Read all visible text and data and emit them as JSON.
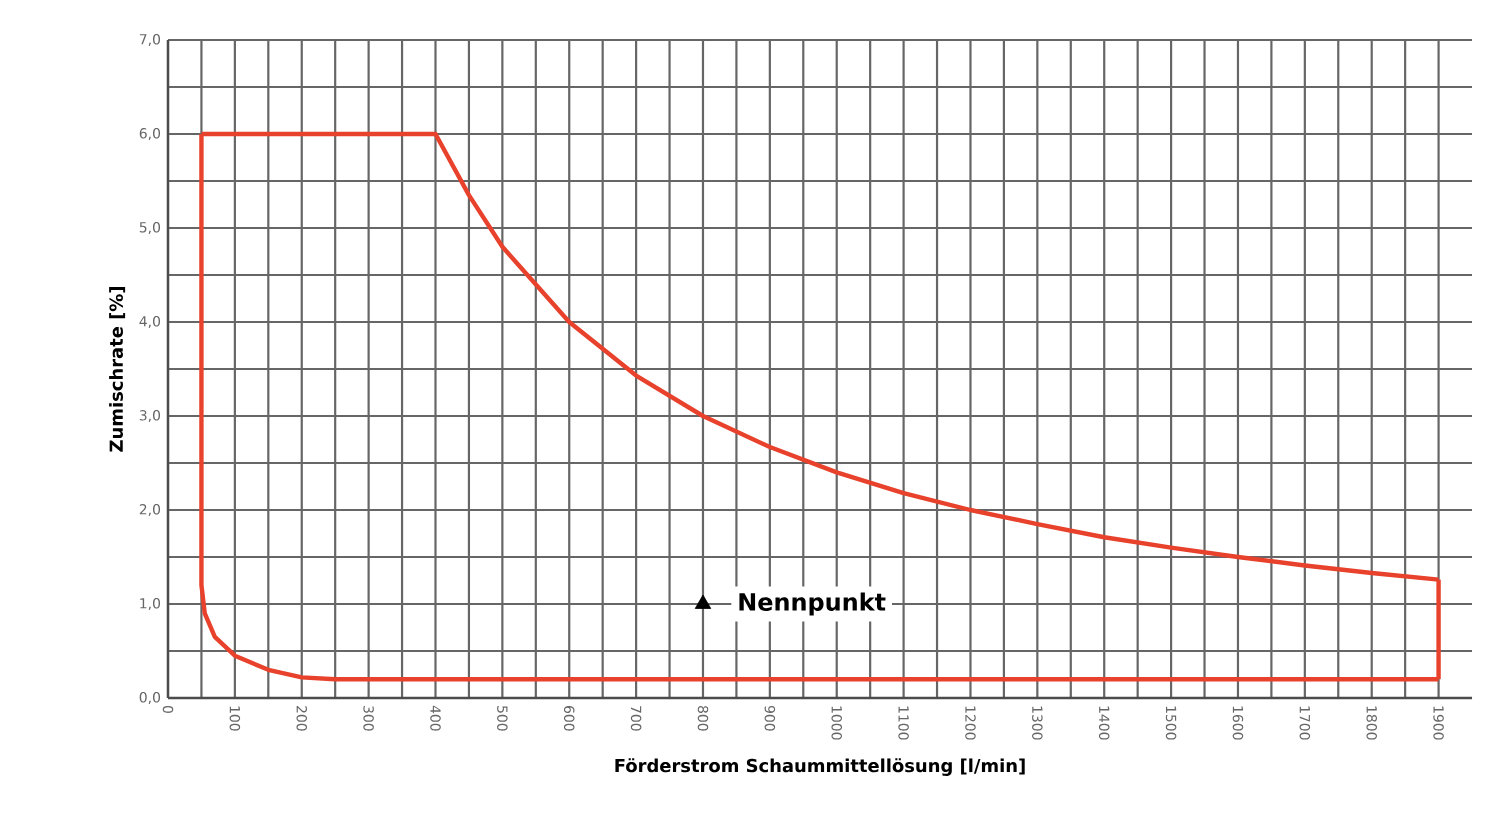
{
  "chart_data": {
    "type": "line",
    "xlabel": "Förderstrom Schaummittellösung  [l/min]",
    "ylabel": "Zumischrate [%]",
    "xlim": [
      0,
      1950
    ],
    "ylim": [
      0,
      7
    ],
    "xticks": [
      0,
      {
        "value": 50,
        "label": null
      },
      100,
      {
        "value": 150,
        "label": null
      },
      200,
      {
        "value": 250,
        "label": null
      },
      300,
      {
        "value": 350,
        "label": null
      },
      400,
      {
        "value": 450,
        "label": null
      },
      500,
      {
        "value": 550,
        "label": null
      },
      600,
      {
        "value": 650,
        "label": null
      },
      700,
      {
        "value": 750,
        "label": null
      },
      800,
      {
        "value": 850,
        "label": null
      },
      900,
      {
        "value": 950,
        "label": null
      },
      1000,
      {
        "value": 1050,
        "label": null
      },
      1100,
      {
        "value": 1150,
        "label": null
      },
      1200,
      {
        "value": 1250,
        "label": null
      },
      1300,
      {
        "value": 1350,
        "label": null
      },
      1400,
      {
        "value": 1450,
        "label": null
      },
      1500,
      {
        "value": 1550,
        "label": null
      },
      1600,
      {
        "value": 1650,
        "label": null
      },
      1700,
      {
        "value": 1750,
        "label": null
      },
      1800,
      {
        "value": 1850,
        "label": null
      },
      1900
    ],
    "yticks": [
      {
        "value": 0,
        "label": "0,0"
      },
      {
        "value": 0.5,
        "label": null
      },
      {
        "value": 1,
        "label": "1,0"
      },
      {
        "value": 1.5,
        "label": null
      },
      {
        "value": 2,
        "label": "2,0"
      },
      {
        "value": 2.5,
        "label": null
      },
      {
        "value": 3,
        "label": "3,0"
      },
      {
        "value": 3.5,
        "label": null
      },
      {
        "value": 4,
        "label": "4,0"
      },
      {
        "value": 4.5,
        "label": null
      },
      {
        "value": 5,
        "label": "5,0"
      },
      {
        "value": 5.5,
        "label": null
      },
      {
        "value": 6,
        "label": "6,0"
      },
      {
        "value": 6.5,
        "label": null
      },
      {
        "value": 7,
        "label": "7,0"
      }
    ],
    "grid": true,
    "series": [
      {
        "color": "#e8412c",
        "marker": "none",
        "line_style": "solid",
        "x": [
          50,
          400,
          450,
          500,
          600,
          700,
          800,
          900,
          1000,
          1100,
          1200,
          1300,
          1400,
          1500,
          1600,
          1700,
          1800,
          1900
        ],
        "values": [
          6.0,
          6.0,
          5.35,
          4.8,
          4.0,
          3.43,
          3.0,
          2.67,
          2.4,
          2.18,
          2.0,
          1.85,
          1.71,
          1.6,
          1.5,
          1.41,
          1.33,
          1.26
        ]
      },
      {
        "color": "#e8412c",
        "marker": "none",
        "line_style": "solid",
        "x": [
          50,
          50,
          55,
          70,
          100,
          150,
          200,
          250,
          1900
        ],
        "values": [
          6.0,
          1.2,
          0.9,
          0.65,
          0.45,
          0.3,
          0.22,
          0.2,
          0.2
        ]
      },
      {
        "color": "#e8412c",
        "marker": "none",
        "line_style": "solid",
        "x": [
          1900,
          1900
        ],
        "values": [
          1.26,
          0.2
        ]
      },
      {
        "type": "scatter",
        "color": "#000000",
        "marker": "triangle",
        "x": [
          800
        ],
        "values": [
          1.0
        ]
      }
    ],
    "annotations": [
      {
        "text": "Nennpunkt",
        "x": 800,
        "y": 1.0
      }
    ]
  }
}
